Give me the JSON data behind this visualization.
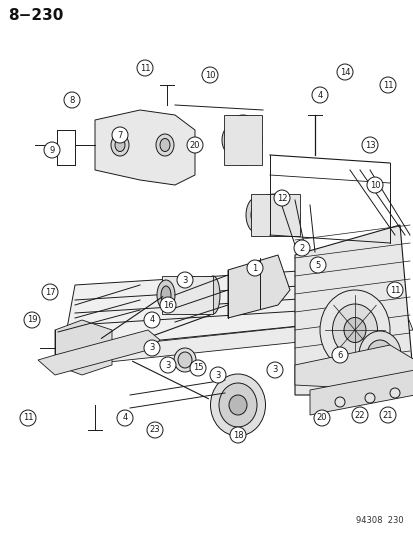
{
  "bg_color": "#ffffff",
  "page_number": "8−230",
  "footer_text": "94308  230",
  "line_color": "#1a1a1a",
  "lw": 0.7
}
